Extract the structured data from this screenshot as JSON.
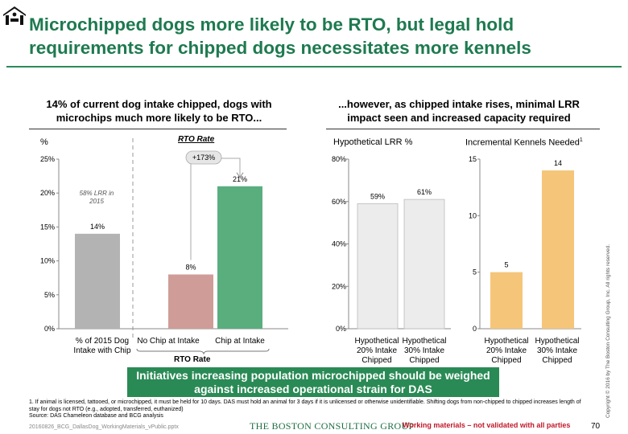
{
  "title": "Microchipped dogs more likely to be RTO, but legal hold requirements for chipped dogs necessitates more kennels",
  "left_panel": {
    "subtitle": "14% of current dog intake chipped, dogs with microchips much more likely to be RTO...",
    "unit": "%",
    "rto_rate_header": "RTO Rate",
    "rto_rate_bottom": "RTO Rate",
    "lrr_note": "58% LRR in 2015",
    "growth_label": "+173%"
  },
  "right_panel": {
    "subtitle": "...however, as chipped intake rises, minimal LRR impact seen and increased capacity required"
  },
  "callout": "Initiatives increasing population microchipped should be weighed against increased operational strain for DAS",
  "footnote_1": "1. If animal is licensed, tattooed, or microchipped, it must be held for 10 days. DAS must hold an animal for 3 days if it is unlicensed or otherwise unidentifiable. Shifting dogs from non-chipped to chipped increases length of stay for dogs not RTO (e.g., adopted, transferred, euthanized)",
  "source": "Source: DAS Chameleon database and BCG analysis",
  "filename": "20160826_BCG_DallasDog_WorkingMaterials_vPublic.pptx",
  "brand": "THE BOSTON CONSULTING GROUP",
  "working_note": "Working materials – not validated with all parties",
  "page_number": "70",
  "copyright": "Copyright © 2016 by The Boston Consulting Group, Inc. All rights reserved.",
  "chart_data": [
    {
      "type": "bar",
      "title": "",
      "ylabel": "%",
      "ylim": [
        0,
        25
      ],
      "yticks": [
        "0%",
        "5%",
        "10%",
        "15%",
        "20%",
        "25%"
      ],
      "categories": [
        "% of 2015 Dog Intake with Chip",
        "No Chip at Intake",
        "Chip at Intake"
      ],
      "values": [
        14,
        8,
        21
      ],
      "data_labels": [
        "14%",
        "8%",
        "21%"
      ],
      "colors": [
        "#b3b3b3",
        "#cf9c98",
        "#5aae7e"
      ]
    },
    {
      "type": "bar",
      "title": "Hypothetical LRR %",
      "ylim": [
        0,
        80
      ],
      "yticks": [
        "0%",
        "20%",
        "40%",
        "60%",
        "80%"
      ],
      "categories": [
        "Hypothetical 20% Intake Chipped",
        "Hypothetical 30% Intake Chipped"
      ],
      "values": [
        59,
        61
      ],
      "data_labels": [
        "59%",
        "61%"
      ],
      "colors": [
        "#ececec",
        "#ececec"
      ]
    },
    {
      "type": "bar",
      "title": "Incremental Kennels Needed",
      "title_footnote": "1",
      "ylim": [
        0,
        15
      ],
      "yticks": [
        "0",
        "5",
        "10",
        "15"
      ],
      "categories": [
        "Hypothetical 20% Intake Chipped",
        "Hypothetical 30% Intake Chipped"
      ],
      "values": [
        5,
        14
      ],
      "data_labels": [
        "5",
        "14"
      ],
      "colors": [
        "#f5c579",
        "#f5c579"
      ]
    }
  ]
}
